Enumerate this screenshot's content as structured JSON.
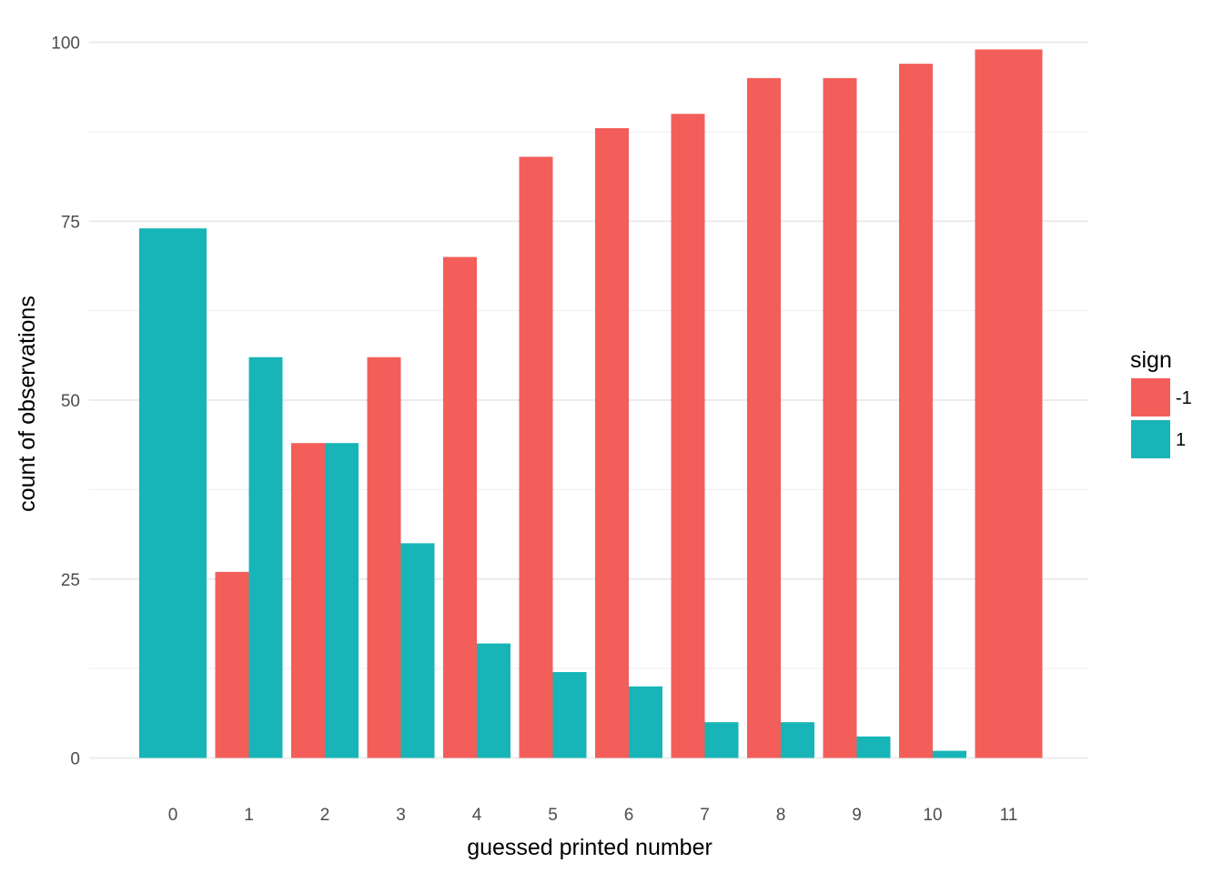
{
  "chart_data": {
    "type": "bar",
    "categories": [
      "0",
      "1",
      "2",
      "3",
      "4",
      "5",
      "6",
      "7",
      "8",
      "9",
      "10",
      "11"
    ],
    "series": [
      {
        "name": "-1",
        "color": "#F35E5A",
        "values": [
          0,
          26,
          44,
          56,
          70,
          84,
          88,
          90,
          95,
          95,
          97,
          99
        ]
      },
      {
        "name": "1",
        "color": "#17B5B7",
        "values": [
          74,
          56,
          44,
          30,
          16,
          12,
          10,
          5,
          5,
          3,
          1,
          0
        ]
      }
    ],
    "xlabel": "guessed printed number",
    "ylabel": "count of observations",
    "ylim": [
      0,
      100
    ],
    "yticks": [
      "0",
      "25",
      "50",
      "75",
      "100"
    ],
    "legend_title": "sign",
    "legend_position": "right",
    "grid": true,
    "grid_major_color": "#EBEBEB",
    "grid_minor_color": "#F2F2F2"
  }
}
